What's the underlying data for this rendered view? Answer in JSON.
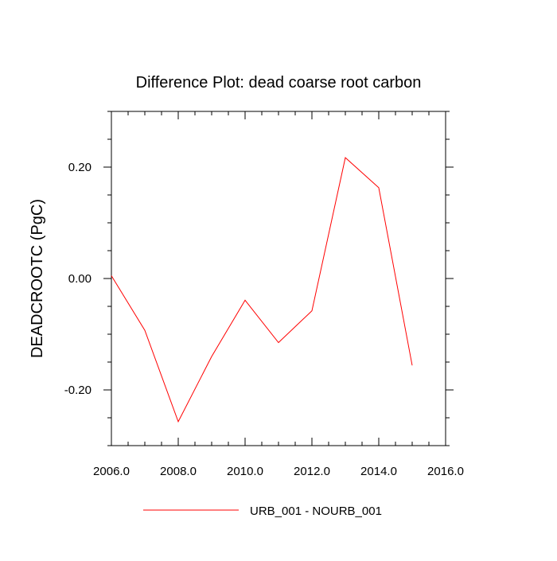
{
  "chart_data": {
    "type": "line",
    "title": "Difference Plot: dead coarse root carbon",
    "xlabel": "",
    "ylabel": "DEADCROOTC  (PgC)",
    "xlim": [
      2006,
      2016
    ],
    "ylim": [
      -0.3,
      0.3
    ],
    "xticks": [
      2006,
      2008,
      2010,
      2012,
      2014,
      2016
    ],
    "xtick_labels": [
      "2006.0",
      "2008.0",
      "2010.0",
      "2012.0",
      "2014.0",
      "2016.0"
    ],
    "yticks": [
      -0.2,
      0.0,
      0.2
    ],
    "ytick_labels": [
      "-0.20",
      "0.00",
      "0.20"
    ],
    "grid": false,
    "legend_position": "bottom",
    "series": [
      {
        "name": "URB_001 - NOURB_001",
        "color": "#ff0000",
        "x": [
          2006,
          2007,
          2008,
          2009,
          2010,
          2011,
          2012,
          2013,
          2014,
          2015
        ],
        "y": [
          0.005,
          -0.093,
          -0.257,
          -0.14,
          -0.039,
          -0.115,
          -0.058,
          0.217,
          0.163,
          -0.156
        ]
      }
    ]
  }
}
